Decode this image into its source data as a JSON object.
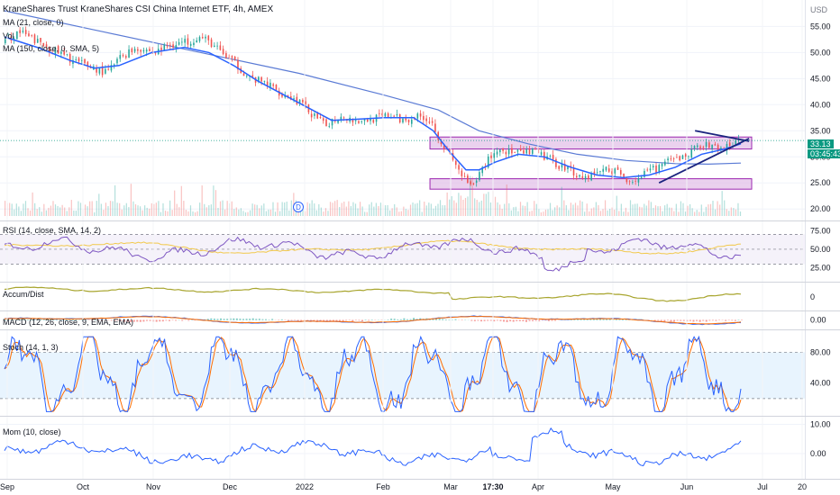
{
  "header": {
    "title": "KraneShares Trust KraneShares CSI China Internet ETF, 4h, AMEX",
    "ma1_label": "MA (21, close, 0)",
    "vol_label": "Vol",
    "ma2_label": "MA (150, close, 0, SMA, 5)",
    "currency": "USD"
  },
  "price_badge": {
    "price": "33.13",
    "countdown": "03:45:43"
  },
  "event_marker": "D",
  "panels": {
    "rsi_label": "RSI (14, close, SMA, 14, 2)",
    "accum_label": "Accum/Dist",
    "macd_label": "MACD (12, 26, close, 9, EMA, EMA)",
    "stoch_label": "Stoch (14, 1, 3)",
    "mom_label": "Mom (10, close)"
  },
  "colors": {
    "up": "#26a69a",
    "down": "#ef5350",
    "ma21": "#2962ff",
    "ma150": "#5b7bd5",
    "rsi": "#7e57c2",
    "rsi_ma": "#f2c94c",
    "accum": "#a8a52e",
    "macd": "#2962ff",
    "signal": "#ff6d00",
    "stoch_k": "#2962ff",
    "stoch_d": "#ff6d00",
    "zone_fill": "#e1bee7",
    "zone_stroke": "#9c27b0",
    "trend": "#1a237e",
    "price_line": "#089981"
  },
  "chart_data": [
    {
      "type": "candlestick",
      "title": "KraneShares Trust KraneShares CSI China Internet ETF, 4h, AMEX",
      "y_unit": "USD",
      "y_ticks": [
        "55.00",
        "50.00",
        "45.00",
        "40.00",
        "35.00",
        "30.00",
        "25.00",
        "20.00"
      ],
      "ylim": [
        19,
        58
      ],
      "x_ticks": [
        "Sep",
        "Oct",
        "Nov",
        "Dec",
        "2022",
        "Feb",
        "Mar",
        "17:30",
        "Apr",
        "May",
        "Jun",
        "Jul",
        "20"
      ],
      "close_path": [
        [
          0,
          52
        ],
        [
          8,
          54
        ],
        [
          20,
          52
        ],
        [
          32,
          50
        ],
        [
          45,
          48
        ],
        [
          55,
          47
        ],
        [
          62,
          46
        ],
        [
          70,
          49
        ],
        [
          80,
          51
        ],
        [
          92,
          50
        ],
        [
          100,
          51.5
        ],
        [
          110,
          52
        ],
        [
          118,
          53
        ],
        [
          125,
          52
        ],
        [
          132,
          50
        ],
        [
          140,
          48
        ],
        [
          150,
          45
        ],
        [
          160,
          44
        ],
        [
          170,
          42
        ],
        [
          180,
          40.5
        ],
        [
          188,
          38
        ],
        [
          195,
          36
        ],
        [
          200,
          37
        ],
        [
          206,
          38
        ],
        [
          213,
          37
        ],
        [
          220,
          37
        ],
        [
          228,
          37.5
        ],
        [
          236,
          38
        ],
        [
          242,
          37
        ],
        [
          248,
          37.5
        ],
        [
          256,
          37.8
        ],
        [
          262,
          36
        ],
        [
          266,
          33
        ],
        [
          272,
          30
        ],
        [
          278,
          27
        ],
        [
          282,
          25
        ],
        [
          286,
          24
        ],
        [
          290,
          27
        ],
        [
          296,
          30
        ],
        [
          302,
          31.5
        ],
        [
          308,
          31
        ],
        [
          314,
          30.5
        ],
        [
          322,
          31
        ],
        [
          330,
          30
        ],
        [
          338,
          28.5
        ],
        [
          346,
          27.5
        ],
        [
          352,
          26
        ],
        [
          358,
          26.5
        ],
        [
          364,
          27.5
        ],
        [
          372,
          27.5
        ],
        [
          378,
          26
        ],
        [
          384,
          25.5
        ],
        [
          390,
          26.5
        ],
        [
          396,
          27.5
        ],
        [
          402,
          28.5
        ],
        [
          410,
          29.5
        ],
        [
          418,
          30.5
        ],
        [
          424,
          32.5
        ],
        [
          430,
          32
        ],
        [
          438,
          31.5
        ],
        [
          446,
          32.5
        ],
        [
          450,
          33.1
        ]
      ],
      "current_price": 33.13,
      "ma21_path": [
        [
          0,
          53
        ],
        [
          20,
          51
        ],
        [
          40,
          48.5
        ],
        [
          55,
          47
        ],
        [
          70,
          47.5
        ],
        [
          90,
          50
        ],
        [
          110,
          51
        ],
        [
          125,
          50
        ],
        [
          140,
          47.5
        ],
        [
          155,
          44.5
        ],
        [
          170,
          42
        ],
        [
          185,
          39.5
        ],
        [
          200,
          37
        ],
        [
          215,
          37.2
        ],
        [
          232,
          37.5
        ],
        [
          250,
          37.5
        ],
        [
          262,
          35
        ],
        [
          272,
          31
        ],
        [
          282,
          27.5
        ],
        [
          290,
          27.5
        ],
        [
          300,
          29
        ],
        [
          314,
          30.5
        ],
        [
          330,
          30
        ],
        [
          346,
          28
        ],
        [
          362,
          26.5
        ],
        [
          378,
          26
        ],
        [
          394,
          26.5
        ],
        [
          410,
          28
        ],
        [
          426,
          30.5
        ],
        [
          440,
          31.5
        ],
        [
          450,
          32.5
        ]
      ],
      "ma150_path": [
        [
          0,
          58
        ],
        [
          60,
          54
        ],
        [
          120,
          50
        ],
        [
          180,
          46
        ],
        [
          230,
          42
        ],
        [
          265,
          39
        ],
        [
          290,
          35
        ],
        [
          320,
          32.5
        ],
        [
          350,
          30.5
        ],
        [
          380,
          29.3
        ],
        [
          410,
          28.7
        ],
        [
          430,
          28.6
        ],
        [
          450,
          28.8
        ]
      ],
      "zones": [
        {
          "from": 31.5,
          "to": 33.8
        },
        {
          "from": 23.8,
          "to": 25.8
        }
      ],
      "trendlines": [
        [
          [
            422,
            35
          ],
          [
            455,
            33
          ]
        ],
        [
          [
            400,
            25
          ],
          [
            455,
            33.5
          ]
        ]
      ]
    },
    {
      "type": "line",
      "name": "RSI (14, close, SMA, 14, 2)",
      "y_ticks": [
        "75.00",
        "50.00",
        "25.00"
      ],
      "ylim": [
        10,
        85
      ],
      "bands": [
        30,
        50,
        70
      ]
    },
    {
      "type": "line",
      "name": "Accum/Dist",
      "y_ticks": [
        "0"
      ]
    },
    {
      "type": "line",
      "name": "MACD (12, 26, close, 9, EMA, EMA)",
      "y_ticks": [
        "0.00"
      ]
    },
    {
      "type": "line",
      "name": "Stoch (14, 1, 3)",
      "y_ticks": [
        "80.00",
        "40.00"
      ],
      "ylim": [
        0,
        105
      ],
      "bands": [
        20,
        80
      ]
    },
    {
      "type": "line",
      "name": "Mom (10, close)",
      "y_ticks": [
        "10.00",
        "0.00"
      ],
      "ylim": [
        -8,
        12
      ]
    }
  ]
}
